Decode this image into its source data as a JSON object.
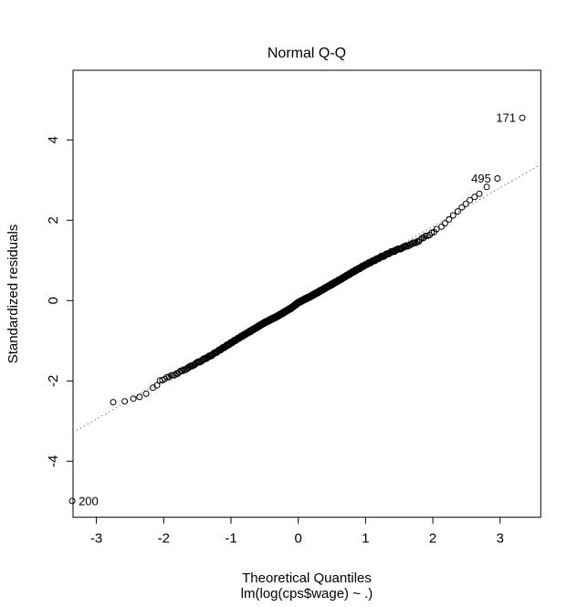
{
  "chart_data": {
    "type": "scatter",
    "subtype": "normal-qq-plot",
    "title": "Normal Q-Q",
    "xlabel": "Theoretical Quantiles",
    "ylabel": "Standardized residuals",
    "subtitle": "lm(log(cps$wage) ~ .)",
    "x_ticks": [
      -3,
      -2,
      -1,
      0,
      1,
      2,
      3
    ],
    "y_ticks": [
      -4,
      -2,
      0,
      2,
      4
    ],
    "xlim": [
      -3.35,
      3.6
    ],
    "ylim": [
      -5.41,
      5.73
    ],
    "grid": false,
    "legend": "none",
    "n_points": 534,
    "point_style": {
      "shape": "open-circle",
      "radius_px": 3,
      "color": "#000000"
    },
    "reference_line": {
      "slope": 0.96,
      "intercept": -0.07,
      "style": "dotted",
      "color": "#808080"
    },
    "labeled_points": [
      {
        "label": "171",
        "x": 3.33,
        "y": 4.55,
        "label_side": "left"
      },
      {
        "label": "495",
        "x": 2.96,
        "y": 3.04,
        "label_side": "left"
      },
      {
        "label": "200",
        "x": -3.36,
        "y": -4.99,
        "label_side": "right"
      }
    ],
    "tail_points_left": [
      [
        -2.75,
        -2.53
      ],
      [
        -2.58,
        -2.51
      ],
      [
        -2.45,
        -2.44
      ],
      [
        -2.36,
        -2.4
      ],
      [
        -2.26,
        -2.32
      ],
      [
        -2.16,
        -2.17
      ],
      [
        -2.1,
        -2.11
      ]
    ],
    "tail_points_right": [
      [
        2.13,
        1.84
      ],
      [
        2.18,
        1.92
      ],
      [
        2.24,
        2.02
      ],
      [
        2.3,
        2.12
      ],
      [
        2.37,
        2.22
      ],
      [
        2.43,
        2.32
      ],
      [
        2.49,
        2.41
      ],
      [
        2.55,
        2.5
      ],
      [
        2.62,
        2.58
      ],
      [
        2.69,
        2.66
      ],
      [
        2.8,
        2.83
      ]
    ],
    "band": {
      "rank_range": [
        11,
        524
      ],
      "curve_control_points": [
        [
          -2.1,
          -2.11
        ],
        [
          -2.05,
          -1.98
        ],
        [
          -1.9,
          -1.89
        ],
        [
          -1.7,
          -1.73
        ],
        [
          -1.5,
          -1.55
        ],
        [
          -1.3,
          -1.37
        ],
        [
          -1.1,
          -1.16
        ],
        [
          -0.9,
          -0.95
        ],
        [
          -0.7,
          -0.75
        ],
        [
          -0.5,
          -0.55
        ],
        [
          -0.3,
          -0.38
        ],
        [
          -0.1,
          -0.18
        ],
        [
          0.0,
          -0.05
        ],
        [
          0.2,
          0.12
        ],
        [
          0.4,
          0.31
        ],
        [
          0.6,
          0.5
        ],
        [
          0.8,
          0.7
        ],
        [
          1.0,
          0.89
        ],
        [
          1.2,
          1.06
        ],
        [
          1.4,
          1.22
        ],
        [
          1.6,
          1.35
        ],
        [
          1.75,
          1.45
        ],
        [
          1.9,
          1.6
        ],
        [
          2.0,
          1.7
        ],
        [
          2.08,
          1.79
        ]
      ]
    }
  },
  "colors": {
    "background": "#ffffff",
    "foreground": "#000000",
    "reference_line": "#808080"
  }
}
